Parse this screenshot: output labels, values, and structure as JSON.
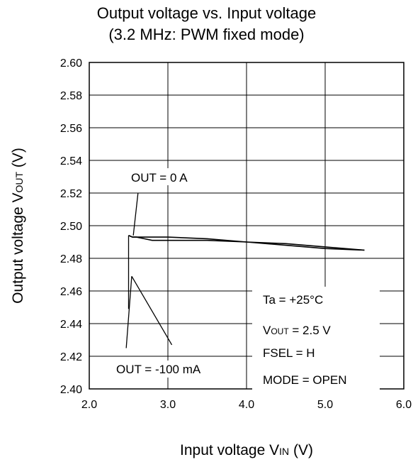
{
  "chart_data": {
    "type": "line",
    "title": "Output voltage vs. Input voltage",
    "subtitle": "(3.2 MHz: PWM fixed mode)",
    "xlabel": {
      "main": "Input voltage V",
      "sub": "IN",
      "unit": " (V)"
    },
    "ylabel": {
      "main": "Output voltage V",
      "sub": "OUT",
      "unit": " (V)"
    },
    "xlim": [
      2.0,
      6.0
    ],
    "ylim": [
      2.4,
      2.6
    ],
    "xticks": [
      "2.0",
      "3.0",
      "4.0",
      "5.0",
      "6.0"
    ],
    "yticks": [
      "2.40",
      "2.42",
      "2.44",
      "2.46",
      "2.48",
      "2.50",
      "2.52",
      "2.54",
      "2.56",
      "2.58",
      "2.60"
    ],
    "grid": true,
    "series": [
      {
        "name": "OUT = 0 A",
        "x": [
          2.5,
          2.55,
          2.6,
          2.7,
          2.8,
          3.0,
          3.5,
          4.0,
          4.5,
          5.0,
          5.5
        ],
        "y": [
          2.494,
          2.493,
          2.493,
          2.493,
          2.493,
          2.493,
          2.492,
          2.49,
          2.489,
          2.487,
          2.485
        ]
      },
      {
        "name": "OUT = -100 mA",
        "x": [
          2.5,
          2.55,
          2.6,
          2.7,
          2.8,
          3.0,
          3.5,
          4.0,
          4.5,
          5.0,
          5.5
        ],
        "y": [
          2.494,
          2.493,
          2.493,
          2.492,
          2.491,
          2.491,
          2.491,
          2.49,
          2.488,
          2.486,
          2.485
        ]
      }
    ],
    "annotations": [
      "Ta = +25°C",
      {
        "main": "V",
        "sub": "OUT",
        "rest": " = 2.5 V"
      },
      "FSEL = H",
      "MODE = OPEN"
    ]
  }
}
